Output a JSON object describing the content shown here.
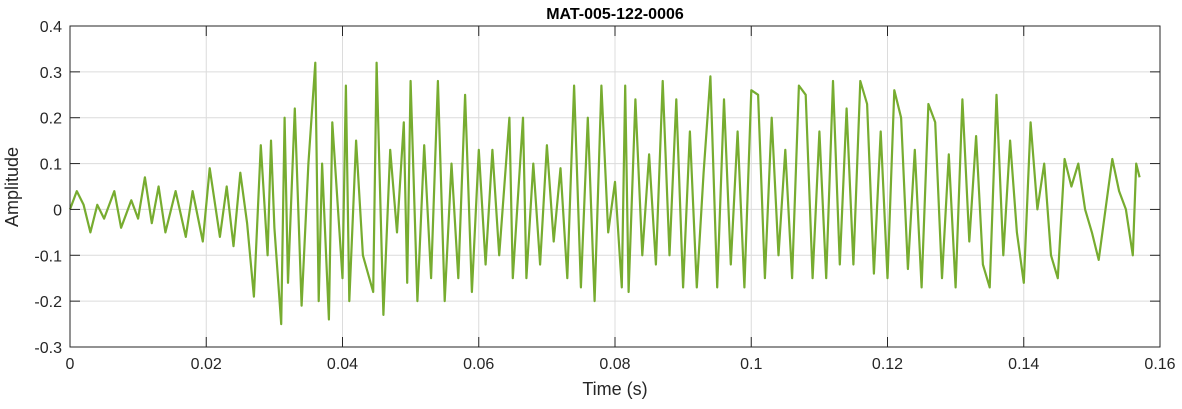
{
  "chart_data": {
    "type": "line",
    "title": "MAT-005-122-0006",
    "xlabel": "Time (s)",
    "ylabel": "Amplitude",
    "xlim": [
      0,
      0.16
    ],
    "ylim": [
      -0.3,
      0.4
    ],
    "xticks": [
      0,
      0.02,
      0.04,
      0.06,
      0.08,
      0.1,
      0.12,
      0.14,
      0.16
    ],
    "xtick_labels": [
      "0",
      "0.02",
      "0.04",
      "0.06",
      "0.08",
      "0.1",
      "0.12",
      "0.14",
      "0.16"
    ],
    "yticks": [
      -0.3,
      -0.2,
      -0.1,
      0,
      0.1,
      0.2,
      0.3,
      0.4
    ],
    "ytick_labels": [
      "-0.3",
      "-0.2",
      "-0.1",
      "0",
      "0.1",
      "0.2",
      "0.3",
      "0.4"
    ],
    "grid": true,
    "line_color": "#77AC30",
    "series": [
      {
        "x": [
          0,
          0.001,
          0.002,
          0.003,
          0.004,
          0.005,
          0.0065,
          0.0075,
          0.009,
          0.01,
          0.011,
          0.012,
          0.013,
          0.014,
          0.0155,
          0.017,
          0.018,
          0.0195,
          0.0205,
          0.022,
          0.023,
          0.024,
          0.025,
          0.026,
          0.027,
          0.028,
          0.029,
          0.0295,
          0.03,
          0.031,
          0.0315,
          0.032,
          0.033,
          0.034,
          0.035,
          0.036,
          0.0365,
          0.037,
          0.038,
          0.0385,
          0.04,
          0.0405,
          0.041,
          0.042,
          0.043,
          0.0445,
          0.045,
          0.046,
          0.047,
          0.048,
          0.049,
          0.0495,
          0.05,
          0.051,
          0.052,
          0.053,
          0.054,
          0.055,
          0.056,
          0.057,
          0.058,
          0.059,
          0.06,
          0.061,
          0.062,
          0.063,
          0.0645,
          0.065,
          0.0665,
          0.067,
          0.068,
          0.069,
          0.07,
          0.071,
          0.072,
          0.073,
          0.074,
          0.075,
          0.076,
          0.077,
          0.078,
          0.079,
          0.08,
          0.081,
          0.0815,
          0.082,
          0.083,
          0.084,
          0.085,
          0.086,
          0.087,
          0.088,
          0.089,
          0.09,
          0.091,
          0.092,
          0.093,
          0.094,
          0.095,
          0.096,
          0.097,
          0.098,
          0.099,
          0.1,
          0.101,
          0.102,
          0.103,
          0.104,
          0.105,
          0.106,
          0.107,
          0.108,
          0.109,
          0.11,
          0.111,
          0.112,
          0.113,
          0.114,
          0.115,
          0.116,
          0.117,
          0.118,
          0.119,
          0.12,
          0.121,
          0.122,
          0.123,
          0.124,
          0.125,
          0.126,
          0.127,
          0.128,
          0.129,
          0.13,
          0.131,
          0.132,
          0.133,
          0.134,
          0.135,
          0.136,
          0.137,
          0.138,
          0.139,
          0.14,
          0.141,
          0.142,
          0.143,
          0.144,
          0.145,
          0.146,
          0.147,
          0.148,
          0.149,
          0.15,
          0.151,
          0.152,
          0.153,
          0.154,
          0.155,
          0.156,
          0.1565,
          0.157
        ],
        "y": [
          0,
          0.04,
          0.01,
          -0.05,
          0.01,
          -0.02,
          0.04,
          -0.04,
          0.02,
          -0.02,
          0.07,
          -0.03,
          0.05,
          -0.05,
          0.04,
          -0.06,
          0.04,
          -0.07,
          0.09,
          -0.06,
          0.05,
          -0.08,
          0.08,
          -0.03,
          -0.19,
          0.14,
          -0.1,
          0.15,
          -0.04,
          -0.25,
          0.2,
          -0.16,
          0.22,
          -0.21,
          0.1,
          0.32,
          -0.2,
          0.1,
          -0.24,
          0.19,
          -0.15,
          0.27,
          -0.2,
          0.15,
          -0.1,
          -0.18,
          0.32,
          -0.23,
          0.13,
          -0.05,
          0.19,
          -0.16,
          0.28,
          -0.2,
          0.14,
          -0.15,
          0.28,
          -0.2,
          0.1,
          -0.15,
          0.25,
          -0.18,
          0.13,
          -0.12,
          0.13,
          -0.1,
          0.2,
          -0.15,
          0.2,
          -0.15,
          0.1,
          -0.12,
          0.14,
          -0.07,
          0.09,
          -0.15,
          0.27,
          -0.17,
          0.2,
          -0.2,
          0.27,
          -0.05,
          0.06,
          -0.17,
          0.27,
          -0.18,
          0.24,
          -0.1,
          0.12,
          -0.12,
          0.28,
          -0.1,
          0.24,
          -0.17,
          0.17,
          -0.17,
          0.08,
          0.29,
          -0.17,
          0.24,
          -0.12,
          0.17,
          -0.17,
          0.26,
          0.25,
          -0.15,
          0.2,
          -0.1,
          0.13,
          -0.15,
          0.27,
          0.25,
          -0.15,
          0.17,
          -0.15,
          0.28,
          -0.12,
          0.22,
          -0.12,
          0.28,
          0.23,
          -0.14,
          0.17,
          -0.15,
          0.26,
          0.2,
          -0.13,
          0.13,
          -0.17,
          0.23,
          0.19,
          -0.15,
          0.12,
          -0.17,
          0.24,
          -0.07,
          0.16,
          -0.12,
          -0.17,
          0.25,
          -0.1,
          0.15,
          -0.05,
          -0.16,
          0.19,
          0.0,
          0.1,
          -0.1,
          -0.15,
          0.11,
          0.05,
          0.1,
          0.0,
          -0.05,
          -0.11,
          0.0,
          0.11,
          0.04,
          0.0,
          -0.1,
          0.1,
          0.07
        ]
      }
    ]
  }
}
